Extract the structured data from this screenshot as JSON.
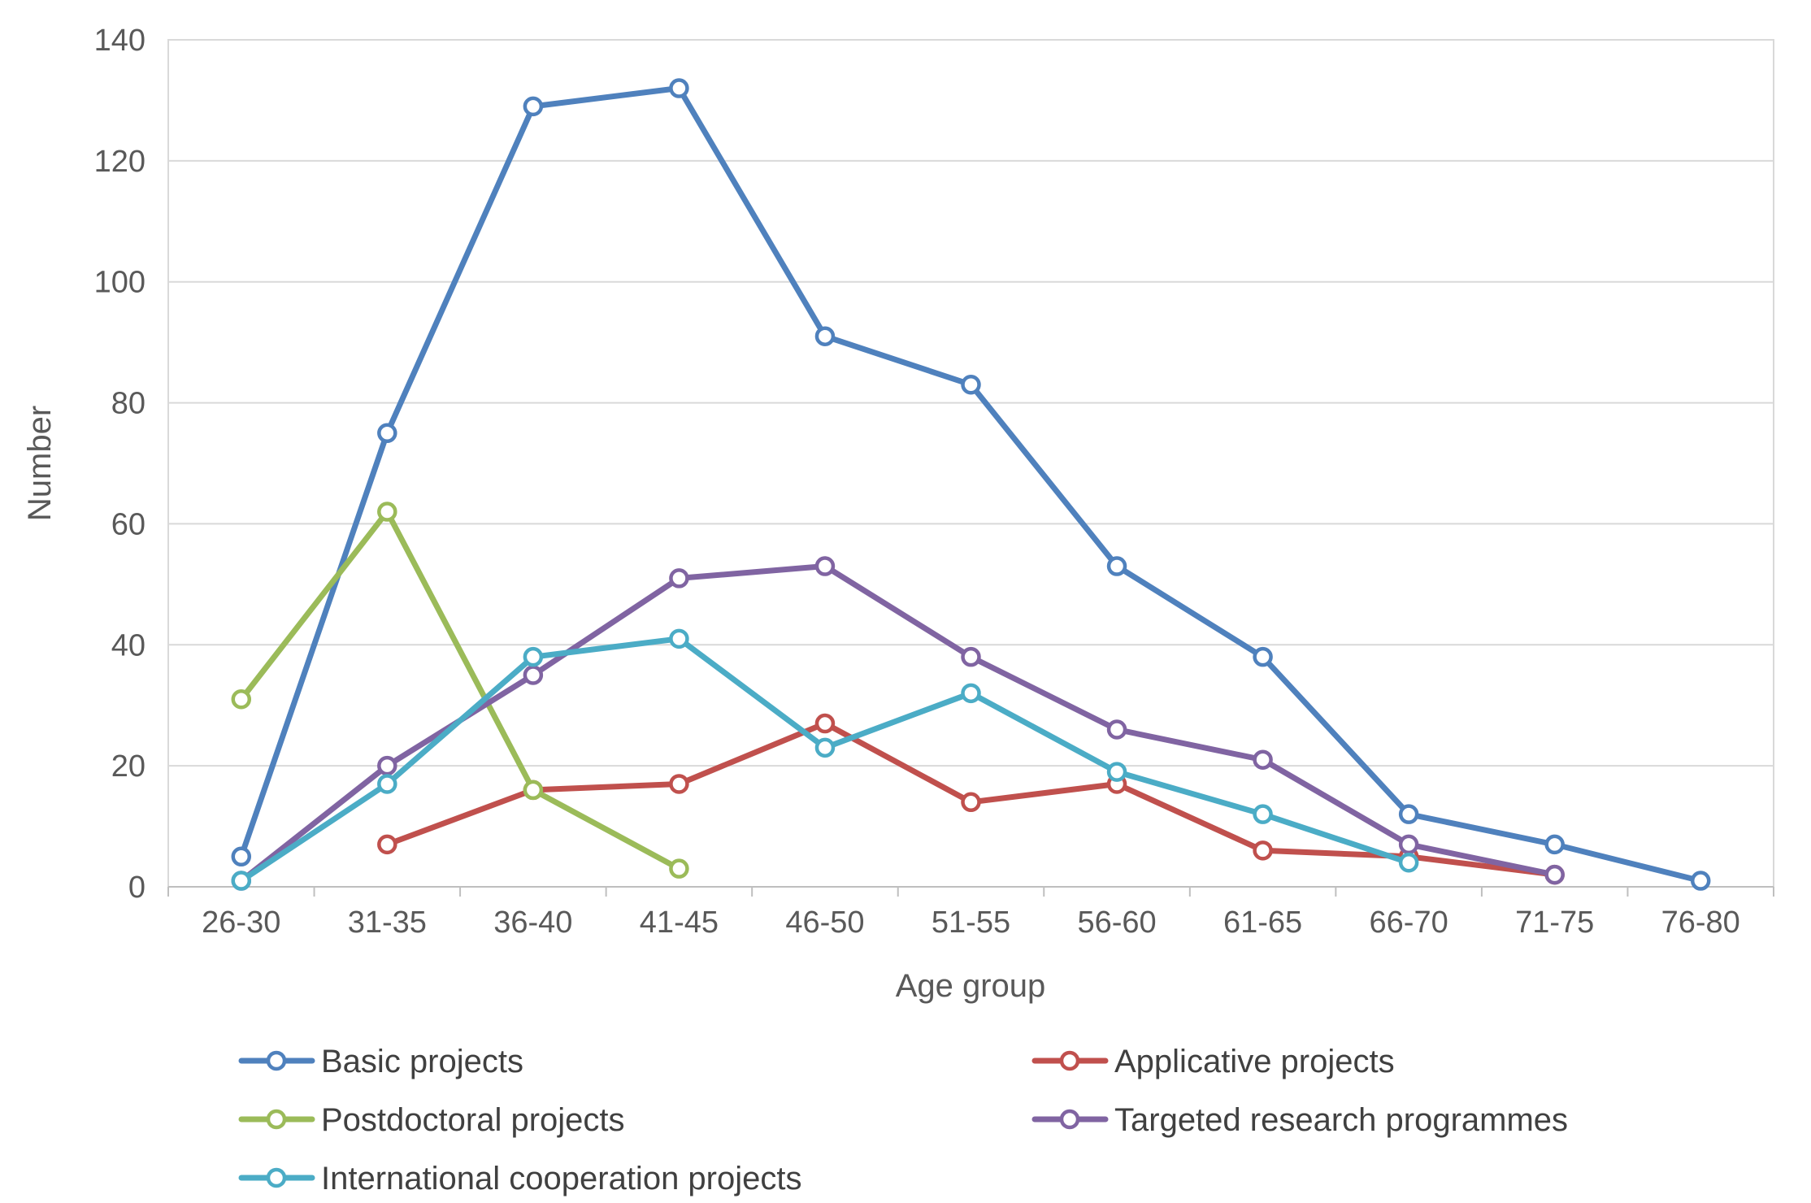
{
  "chart_data": {
    "type": "line",
    "title": "",
    "xlabel": "Age group",
    "ylabel": "Number",
    "categories": [
      "26-30",
      "31-35",
      "36-40",
      "41-45",
      "46-50",
      "51-55",
      "56-60",
      "61-65",
      "66-70",
      "71-75",
      "76-80"
    ],
    "ylim": [
      0,
      140
    ],
    "yticks": [
      0,
      20,
      40,
      60,
      80,
      100,
      120,
      140
    ],
    "grid": "horizontal",
    "legend_position": "bottom",
    "marker": "open-circle",
    "series": [
      {
        "name": "Basic projects",
        "color": "#4F81BD",
        "values": [
          5,
          75,
          129,
          132,
          91,
          83,
          53,
          38,
          12,
          7,
          1
        ]
      },
      {
        "name": "Applicative projects",
        "color": "#C0504D",
        "values": [
          null,
          7,
          16,
          17,
          27,
          14,
          17,
          6,
          5,
          2,
          null
        ]
      },
      {
        "name": "Postdoctoral projects",
        "color": "#9BBB59",
        "values": [
          31,
          62,
          16,
          3,
          null,
          null,
          null,
          null,
          null,
          null,
          null
        ]
      },
      {
        "name": "Targeted research programmes",
        "color": "#8064A2",
        "values": [
          1,
          20,
          35,
          51,
          53,
          38,
          26,
          21,
          7,
          2,
          null
        ]
      },
      {
        "name": "International cooperation projects",
        "color": "#4BACC6",
        "values": [
          1,
          17,
          38,
          41,
          23,
          32,
          19,
          12,
          4,
          null,
          null
        ]
      }
    ]
  }
}
